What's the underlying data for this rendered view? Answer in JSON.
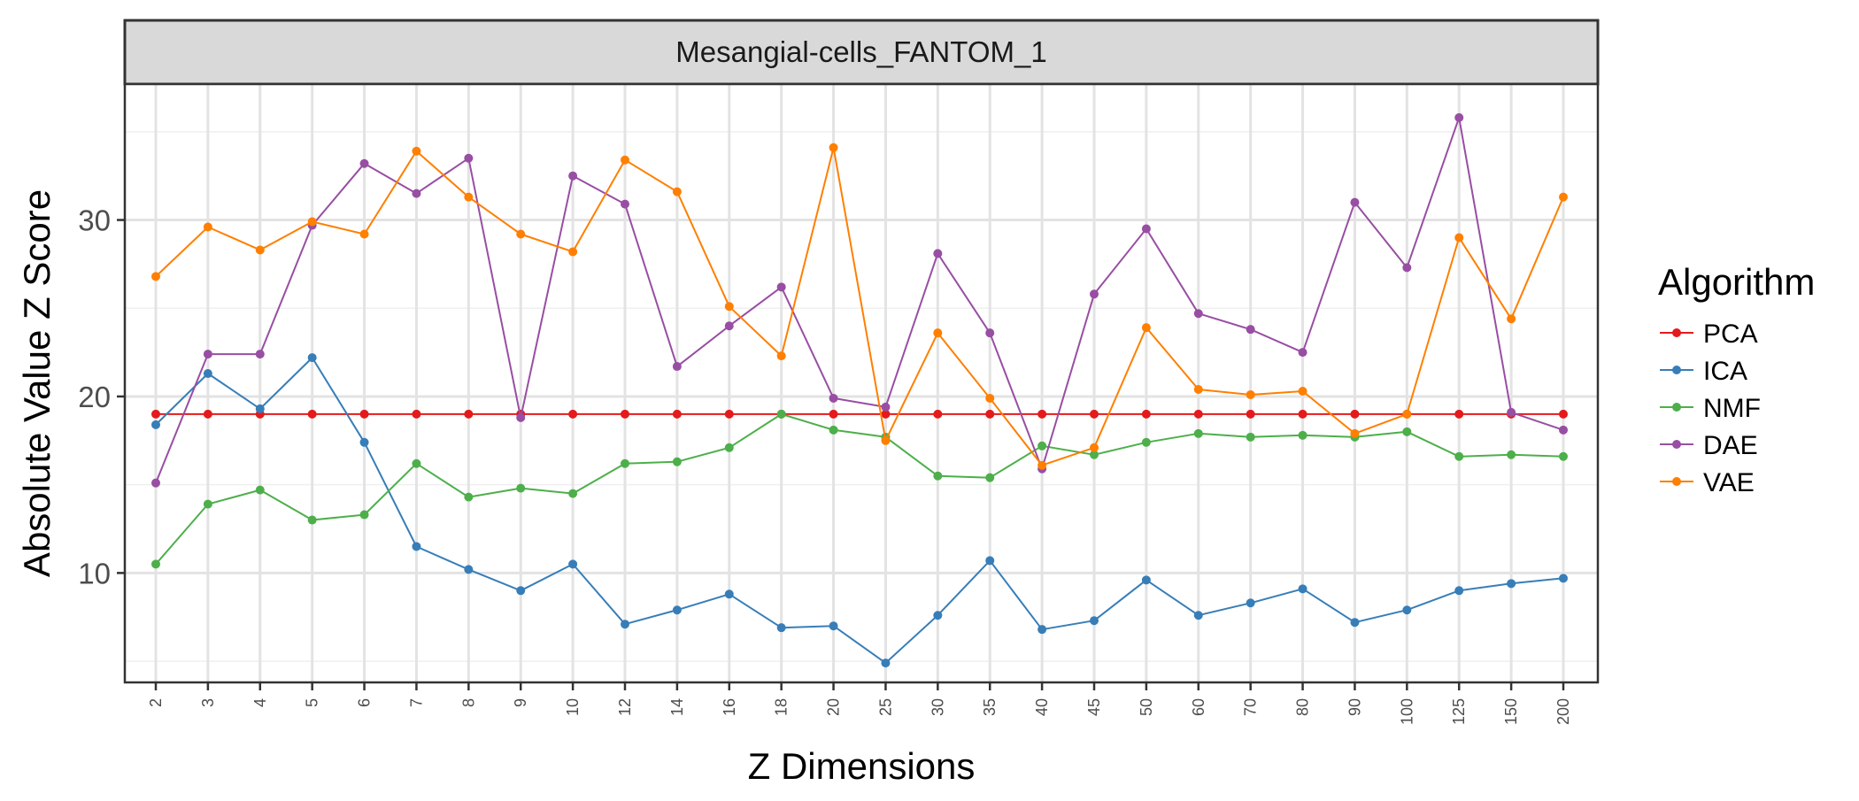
{
  "chart_data": {
    "type": "line",
    "facet_label": "Mesangial-cells_FANTOM_1",
    "xlabel": "Z Dimensions",
    "ylabel": "Absolute Value Z Score",
    "x_categories": [
      "2",
      "3",
      "4",
      "5",
      "6",
      "7",
      "8",
      "9",
      "10",
      "12",
      "14",
      "16",
      "18",
      "20",
      "25",
      "30",
      "35",
      "40",
      "45",
      "50",
      "60",
      "70",
      "80",
      "90",
      "100",
      "125",
      "150",
      "200"
    ],
    "y_ticks": [
      10,
      20,
      30
    ],
    "ylim": [
      3.8,
      37.7
    ],
    "grid": true,
    "legend": {
      "title": "Algorithm",
      "placement": "right"
    },
    "series": [
      {
        "name": "PCA",
        "color": "#e41a1c",
        "values": [
          19,
          19,
          19,
          19,
          19,
          19,
          19,
          19,
          19,
          19,
          19,
          19,
          19,
          19,
          19,
          19,
          19,
          19,
          19,
          19,
          19,
          19,
          19,
          19,
          19,
          19,
          19,
          19
        ]
      },
      {
        "name": "ICA",
        "color": "#377eb8",
        "values": [
          18.4,
          21.3,
          19.3,
          22.2,
          17.4,
          11.5,
          10.2,
          9.0,
          10.5,
          7.1,
          7.9,
          8.8,
          6.9,
          7.0,
          4.9,
          7.6,
          10.7,
          6.8,
          7.3,
          9.6,
          7.6,
          8.3,
          9.1,
          7.2,
          7.9,
          9.0,
          9.4,
          9.7
        ]
      },
      {
        "name": "NMF",
        "color": "#4daf4a",
        "values": [
          10.5,
          13.9,
          14.7,
          13.0,
          13.3,
          16.2,
          14.3,
          14.8,
          14.5,
          16.2,
          16.3,
          17.1,
          19.0,
          18.1,
          17.7,
          15.5,
          15.4,
          17.2,
          16.7,
          17.4,
          17.9,
          17.7,
          17.8,
          17.7,
          18.0,
          16.6,
          16.7,
          16.6
        ]
      },
      {
        "name": "DAE",
        "color": "#984ea3",
        "values": [
          15.1,
          22.4,
          22.4,
          29.7,
          33.2,
          31.5,
          33.5,
          18.8,
          32.5,
          30.9,
          21.7,
          24.0,
          26.2,
          19.9,
          19.4,
          28.1,
          23.6,
          15.9,
          25.8,
          29.5,
          24.7,
          23.8,
          22.5,
          31.0,
          27.3,
          35.8,
          19.1,
          18.1
        ]
      },
      {
        "name": "VAE",
        "color": "#ff7f00",
        "values": [
          26.8,
          29.6,
          28.3,
          29.9,
          29.2,
          33.9,
          31.3,
          29.2,
          28.2,
          33.4,
          31.6,
          25.1,
          22.3,
          34.1,
          17.5,
          23.6,
          19.9,
          16.1,
          17.1,
          23.9,
          20.4,
          20.1,
          20.3,
          17.9,
          19.0,
          29.0,
          24.4,
          31.3
        ]
      }
    ]
  }
}
